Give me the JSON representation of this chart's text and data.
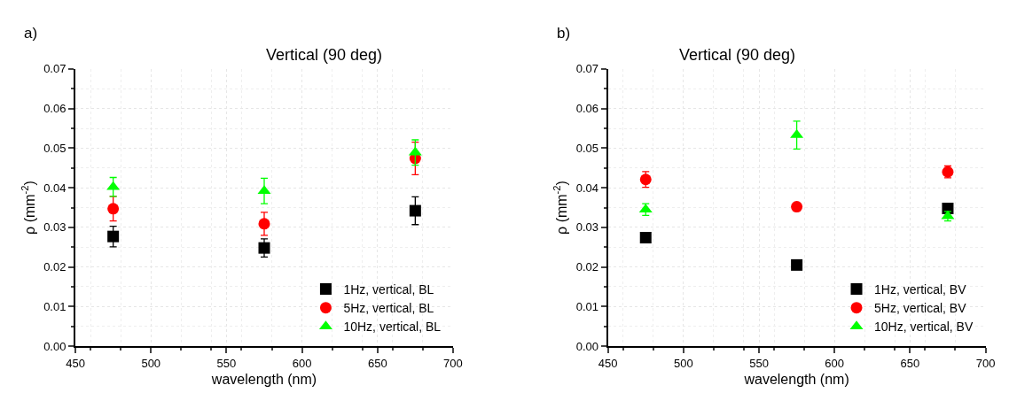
{
  "chart_data": [
    {
      "type": "scatter",
      "title": "Vertical (90 deg)",
      "xlabel": "wavelength (nm)",
      "ylabel": "ρ (mm$^{-2}$)",
      "annotations": [
        "a)"
      ],
      "x": [
        475,
        575,
        675
      ],
      "xlim": [
        450,
        700
      ],
      "xticks": [
        450,
        500,
        550,
        600,
        650,
        700
      ],
      "ylim": [
        0,
        0.07
      ],
      "yticks": [
        {
          "value": 0,
          "label": "0.00"
        },
        {
          "value": 0.01,
          "label": "0.01"
        },
        {
          "value": 0.02,
          "label": "0.02"
        },
        {
          "value": 0.03,
          "label": "0.03"
        },
        {
          "value": 0.04,
          "label": "0.04"
        },
        {
          "value": 0.05,
          "label": "0.05"
        },
        {
          "value": 0.06,
          "label": "0.06"
        },
        {
          "value": 0.07,
          "label": "0.07"
        }
      ],
      "grid": true,
      "legend": "bottom right",
      "series": [
        {
          "name": "1Hz, vertical, BL",
          "color": "#000000",
          "marker": "square",
          "values": [
            0.0277,
            0.0248,
            0.0342
          ],
          "errors": [
            0.0026,
            0.0023,
            0.0035
          ]
        },
        {
          "name": "5Hz, vertical, BL",
          "color": "#ff0000",
          "marker": "circle",
          "values": [
            0.0347,
            0.0309,
            0.0474
          ],
          "errors": [
            0.0031,
            0.0029,
            0.0041
          ]
        },
        {
          "name": "10Hz, vertical, BL",
          "color": "#00ff00",
          "marker": "triangle",
          "values": [
            0.0402,
            0.0392,
            0.0489
          ],
          "errors": [
            0.0024,
            0.0032,
            0.0032
          ]
        }
      ]
    },
    {
      "type": "scatter",
      "title": "Vertical (90 deg)",
      "xlabel": "wavelength (nm)",
      "ylabel": "ρ (mm$^{-2}$)",
      "annotations": [
        "b)"
      ],
      "x": [
        475,
        575,
        675
      ],
      "xlim": [
        450,
        700
      ],
      "xticks": [
        450,
        500,
        550,
        600,
        650,
        700
      ],
      "ylim": [
        0,
        0.07
      ],
      "yticks": [
        {
          "value": 0,
          "label": "0.00"
        },
        {
          "value": 0.01,
          "label": "0.01"
        },
        {
          "value": 0.02,
          "label": "0.02"
        },
        {
          "value": 0.03,
          "label": "0.03"
        },
        {
          "value": 0.04,
          "label": "0.04"
        },
        {
          "value": 0.05,
          "label": "0.05"
        },
        {
          "value": 0.06,
          "label": "0.06"
        },
        {
          "value": 0.07,
          "label": "0.07"
        }
      ],
      "grid": true,
      "legend": "bottom right",
      "series": [
        {
          "name": "1Hz, vertical, BV",
          "color": "#000000",
          "marker": "square",
          "values": [
            0.0274,
            0.0205,
            0.0348
          ],
          "errors": [
            null,
            null,
            0.0005
          ]
        },
        {
          "name": "5Hz, vertical, BV",
          "color": "#ff0000",
          "marker": "circle",
          "values": [
            0.0421,
            0.0352,
            0.044
          ],
          "errors": [
            0.002,
            null,
            0.0015
          ]
        },
        {
          "name": "10Hz, vertical, BV",
          "color": "#00ff00",
          "marker": "triangle",
          "values": [
            0.0345,
            0.0533,
            0.0328
          ],
          "errors": [
            0.0015,
            0.0035,
            0.0012
          ]
        }
      ]
    }
  ]
}
